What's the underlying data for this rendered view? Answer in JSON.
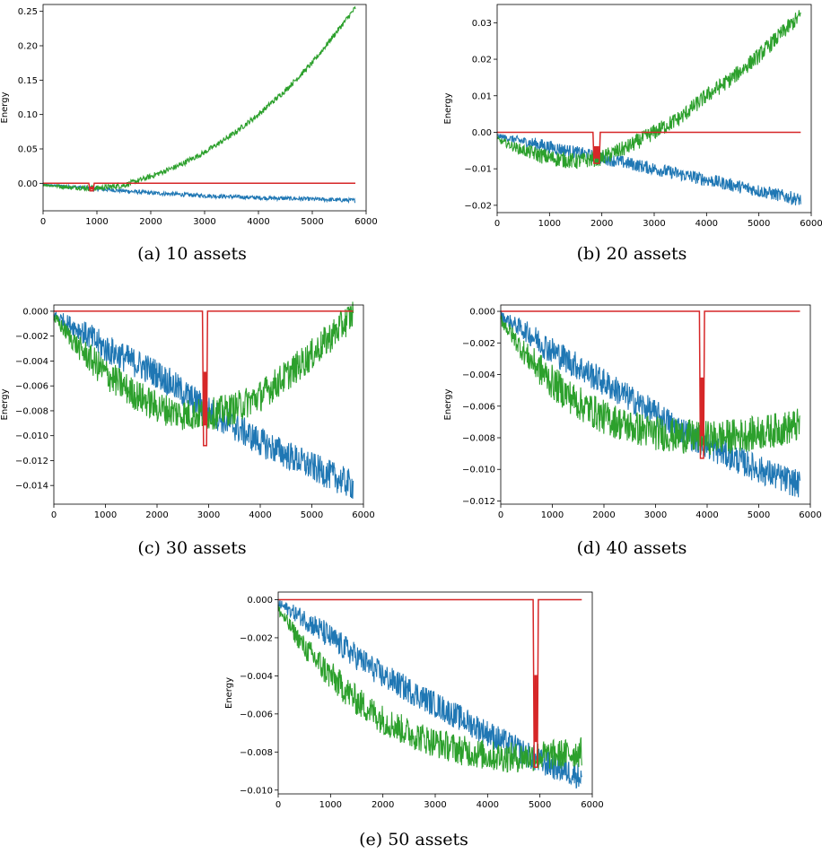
{
  "colors": {
    "blue": "#1f77b4",
    "green": "#2ca02c",
    "red": "#d62728"
  },
  "chart_data": [
    {
      "type": "line",
      "caption": "(a) 10 assets",
      "ylabel": "Energy",
      "xlim": [
        0,
        6000
      ],
      "ylim": [
        -0.04,
        0.26
      ],
      "xticks": [
        0,
        1000,
        2000,
        3000,
        4000,
        5000,
        6000
      ],
      "xtick_labels": [
        "0",
        "1000",
        "2000",
        "3000",
        "4000",
        "5000",
        "6000"
      ],
      "yticks": [
        0.0,
        0.05,
        0.1,
        0.15,
        0.2,
        0.25
      ],
      "ytick_labels": [
        "0.00",
        "0.05",
        "0.10",
        "0.15",
        "0.20",
        "0.25"
      ],
      "series": [
        {
          "color": "blue",
          "x": [
            0,
            1000,
            2000,
            3000,
            4000,
            5000,
            5800
          ],
          "y": [
            -0.002,
            -0.008,
            -0.014,
            -0.018,
            -0.021,
            -0.023,
            -0.025
          ],
          "noise": 0.003
        },
        {
          "color": "green",
          "x": [
            0,
            500,
            1000,
            1500,
            2000,
            2500,
            3000,
            3500,
            4000,
            4500,
            5000,
            5500,
            5800
          ],
          "y": [
            -0.002,
            -0.006,
            -0.007,
            -0.003,
            0.01,
            0.025,
            0.045,
            0.07,
            0.1,
            0.135,
            0.175,
            0.225,
            0.255
          ],
          "noise": 0.004
        },
        {
          "color": "red",
          "x": [
            0,
            850,
            870,
            930,
            950,
            5800
          ],
          "y": [
            0,
            0,
            -0.011,
            -0.011,
            0,
            0
          ],
          "noise": 0
        }
      ]
    },
    {
      "type": "line",
      "caption": "(b) 20 assets",
      "ylabel": "Energy",
      "xlim": [
        0,
        6000
      ],
      "ylim": [
        -0.022,
        0.035
      ],
      "xticks": [
        0,
        1000,
        2000,
        3000,
        4000,
        5000,
        6000
      ],
      "xtick_labels": [
        "0",
        "1000",
        "2000",
        "3000",
        "4000",
        "5000",
        "6000"
      ],
      "yticks": [
        -0.02,
        -0.01,
        0.0,
        0.01,
        0.02,
        0.03
      ],
      "ytick_labels": [
        "−0.02",
        "−0.01",
        "0.00",
        "0.01",
        "0.02",
        "0.03"
      ],
      "series": [
        {
          "color": "blue",
          "x": [
            0,
            1000,
            2000,
            3000,
            4000,
            5000,
            5800
          ],
          "y": [
            -0.001,
            -0.004,
            -0.007,
            -0.01,
            -0.013,
            -0.016,
            -0.0185
          ],
          "noise": 0.0018
        },
        {
          "color": "green",
          "x": [
            0,
            500,
            1000,
            1500,
            2000,
            2500,
            3000,
            3500,
            4000,
            4500,
            5000,
            5500,
            5800
          ],
          "y": [
            -0.002,
            -0.005,
            -0.007,
            -0.008,
            -0.007,
            -0.004,
            0.0,
            0.004,
            0.01,
            0.015,
            0.021,
            0.028,
            0.032
          ],
          "noise": 0.0022
        },
        {
          "color": "red",
          "x": [
            0,
            1830,
            1850,
            1950,
            1970,
            5800
          ],
          "y": [
            0,
            0,
            -0.0085,
            -0.0085,
            0,
            0
          ],
          "noise": 0
        }
      ]
    },
    {
      "type": "line",
      "caption": "(c) 30 assets",
      "ylabel": "Energy",
      "xlim": [
        0,
        6000
      ],
      "ylim": [
        -0.0155,
        0.0005
      ],
      "xticks": [
        0,
        1000,
        2000,
        3000,
        4000,
        5000,
        6000
      ],
      "xtick_labels": [
        "0",
        "1000",
        "2000",
        "3000",
        "4000",
        "5000",
        "6000"
      ],
      "yticks": [
        -0.014,
        -0.012,
        -0.01,
        -0.008,
        -0.006,
        -0.004,
        -0.002,
        0.0
      ],
      "ytick_labels": [
        "−0.014",
        "−0.012",
        "−0.010",
        "−0.008",
        "−0.006",
        "−0.004",
        "−0.002",
        "0.000"
      ],
      "series": [
        {
          "color": "blue",
          "x": [
            0,
            500,
            1000,
            2000,
            3000,
            4000,
            5000,
            5800
          ],
          "y": [
            -0.0003,
            -0.0015,
            -0.003,
            -0.005,
            -0.008,
            -0.0105,
            -0.0125,
            -0.014
          ],
          "noise": 0.0012
        },
        {
          "color": "green",
          "x": [
            0,
            500,
            1000,
            1500,
            2000,
            2500,
            3000,
            3500,
            4000,
            4500,
            5000,
            5500,
            5800
          ],
          "y": [
            -0.0005,
            -0.003,
            -0.005,
            -0.0065,
            -0.0077,
            -0.0083,
            -0.0083,
            -0.0078,
            -0.0068,
            -0.0052,
            -0.0035,
            -0.0015,
            -0.0002
          ],
          "noise": 0.0013
        },
        {
          "color": "red",
          "x": [
            0,
            2880,
            2900,
            2960,
            2980,
            5800
          ],
          "y": [
            0,
            0,
            -0.0108,
            -0.0108,
            0,
            0
          ],
          "noise": 0
        }
      ]
    },
    {
      "type": "line",
      "caption": "(d) 40 assets",
      "ylabel": "Energy",
      "xlim": [
        0,
        6000
      ],
      "ylim": [
        -0.0122,
        0.0004
      ],
      "xticks": [
        0,
        1000,
        2000,
        3000,
        4000,
        5000,
        6000
      ],
      "xtick_labels": [
        "0",
        "1000",
        "2000",
        "3000",
        "4000",
        "5000",
        "6000"
      ],
      "yticks": [
        -0.012,
        -0.01,
        -0.008,
        -0.006,
        -0.004,
        -0.002,
        0.0
      ],
      "ytick_labels": [
        "−0.012",
        "−0.010",
        "−0.008",
        "−0.006",
        "−0.004",
        "−0.002",
        "0.000"
      ],
      "series": [
        {
          "color": "blue",
          "x": [
            0,
            500,
            1000,
            2000,
            3000,
            4000,
            5000,
            5800
          ],
          "y": [
            -0.0003,
            -0.0013,
            -0.0025,
            -0.0045,
            -0.0065,
            -0.0085,
            -0.01,
            -0.011
          ],
          "noise": 0.0009
        },
        {
          "color": "green",
          "x": [
            0,
            500,
            1000,
            1500,
            2000,
            2500,
            3000,
            3500,
            4000,
            4500,
            5000,
            5500,
            5800
          ],
          "y": [
            -0.0005,
            -0.0028,
            -0.0045,
            -0.0058,
            -0.0067,
            -0.0073,
            -0.0077,
            -0.0079,
            -0.008,
            -0.0079,
            -0.0077,
            -0.0074,
            -0.0072
          ],
          "noise": 0.0011
        },
        {
          "color": "red",
          "x": [
            0,
            3850,
            3870,
            3930,
            3950,
            5800
          ],
          "y": [
            0,
            0,
            -0.0093,
            -0.0093,
            0,
            0
          ],
          "noise": 0
        }
      ]
    },
    {
      "type": "line",
      "caption": "(e) 50 assets",
      "ylabel": "Energy",
      "xlim": [
        0,
        6000
      ],
      "ylim": [
        -0.0102,
        0.0004
      ],
      "xticks": [
        0,
        1000,
        2000,
        3000,
        4000,
        5000,
        6000
      ],
      "xtick_labels": [
        "0",
        "1000",
        "2000",
        "3000",
        "4000",
        "5000",
        "6000"
      ],
      "yticks": [
        -0.01,
        -0.008,
        -0.006,
        -0.004,
        -0.002,
        0.0
      ],
      "ytick_labels": [
        "−0.010",
        "−0.008",
        "−0.006",
        "−0.004",
        "−0.002",
        "0.000"
      ],
      "series": [
        {
          "color": "blue",
          "x": [
            0,
            500,
            1000,
            2000,
            3000,
            4000,
            5000,
            5800
          ],
          "y": [
            -0.0002,
            -0.001,
            -0.002,
            -0.004,
            -0.0055,
            -0.007,
            -0.0085,
            -0.0093
          ],
          "noise": 0.0007
        },
        {
          "color": "green",
          "x": [
            0,
            500,
            1000,
            1500,
            2000,
            2500,
            3000,
            3500,
            4000,
            4500,
            5000,
            5500,
            5800
          ],
          "y": [
            -0.0005,
            -0.0025,
            -0.004,
            -0.0053,
            -0.0063,
            -0.007,
            -0.0075,
            -0.0079,
            -0.0082,
            -0.0083,
            -0.0082,
            -0.0081,
            -0.008
          ],
          "noise": 0.0008
        },
        {
          "color": "red",
          "x": [
            0,
            4870,
            4890,
            4950,
            4970,
            5800
          ],
          "y": [
            0,
            0,
            -0.0088,
            -0.0088,
            0,
            0
          ],
          "noise": 0
        }
      ]
    }
  ]
}
